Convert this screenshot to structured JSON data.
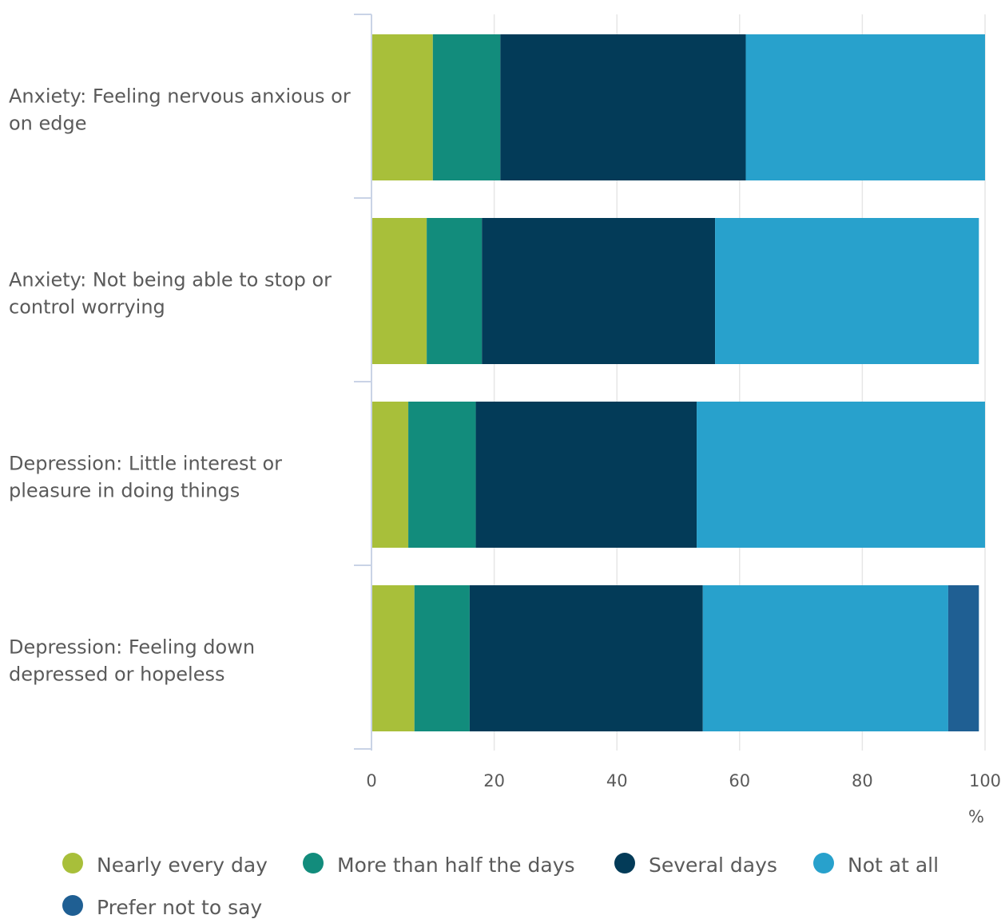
{
  "chart_data": {
    "type": "bar",
    "orientation": "horizontal",
    "stacked": true,
    "categories": [
      "Anxiety: Feeling nervous anxious or on edge",
      "Anxiety: Not being able to stop or control worrying",
      "Depression: Little interest or pleasure in doing things",
      "Depression: Feeling down depressed or hopeless"
    ],
    "series": [
      {
        "name": "Nearly every day",
        "color": "#a8bf3a",
        "values": [
          10,
          9,
          6,
          7
        ]
      },
      {
        "name": "More than half the days",
        "color": "#128c7c",
        "values": [
          11,
          9,
          11,
          9
        ]
      },
      {
        "name": "Several days",
        "color": "#033b58",
        "values": [
          40,
          38,
          36,
          38
        ]
      },
      {
        "name": "Not at all",
        "color": "#28a1cc",
        "values": [
          39,
          43,
          47,
          40
        ]
      },
      {
        "name": "Prefer not to say",
        "color": "#1f5f93",
        "values": [
          0,
          0,
          0,
          5
        ]
      }
    ],
    "xlim": [
      0,
      100
    ],
    "xticks": [
      0,
      20,
      40,
      60,
      80,
      100
    ],
    "xlabel": "%",
    "title": "",
    "grid": true,
    "legend_position": "bottom"
  },
  "labels": {
    "category_lines": [
      [
        "Anxiety: Feeling nervous anxious or",
        "on edge"
      ],
      [
        "Anxiety: Not being able to stop or",
        "control worrying"
      ],
      [
        "Depression: Little interest or",
        "pleasure in doing things"
      ],
      [
        "Depression: Feeling down",
        "depressed or hopeless"
      ]
    ]
  },
  "colors": {
    "axis": "#c9d3e6",
    "grid": "#e6e6e6",
    "text": "#5a5a5a"
  }
}
